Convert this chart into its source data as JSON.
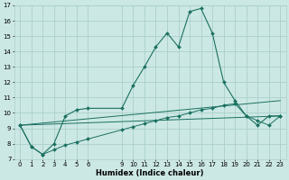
{
  "xlabel": "Humidex (Indice chaleur)",
  "bg_color": "#cce8e4",
  "grid_color": "#aacfcc",
  "line_color": "#1a7060",
  "series1_x": [
    0,
    1,
    2,
    3,
    4,
    5,
    6,
    9,
    10,
    11,
    12,
    13,
    14,
    15,
    16,
    17,
    18,
    19,
    20,
    21,
    22,
    23
  ],
  "series1_y": [
    9.2,
    7.8,
    7.3,
    8.0,
    9.8,
    10.2,
    10.3,
    10.3,
    11.8,
    13.0,
    14.3,
    15.2,
    14.3,
    16.6,
    16.8,
    15.2,
    12.0,
    10.8,
    9.8,
    9.2,
    9.8,
    9.8
  ],
  "series2_x": [
    0,
    1,
    2,
    3,
    4,
    5,
    6,
    9,
    10,
    11,
    12,
    13,
    14,
    15,
    16,
    17,
    18,
    19,
    20,
    21,
    22,
    23
  ],
  "series2_y": [
    9.2,
    7.8,
    7.3,
    7.6,
    7.9,
    8.1,
    8.3,
    8.9,
    9.1,
    9.3,
    9.5,
    9.7,
    9.8,
    10.0,
    10.2,
    10.3,
    10.5,
    10.6,
    9.8,
    9.5,
    9.2,
    9.8
  ],
  "series3_x": [
    0,
    23
  ],
  "series3_y": [
    9.2,
    9.8
  ],
  "series4_x": [
    0,
    23
  ],
  "series4_y": [
    9.2,
    10.8
  ],
  "x_ticks": [
    0,
    1,
    2,
    3,
    4,
    5,
    6,
    9,
    10,
    11,
    12,
    13,
    14,
    15,
    16,
    17,
    18,
    19,
    20,
    21,
    22,
    23
  ],
  "ylim": [
    7,
    17
  ],
  "xlim": [
    -0.5,
    23.5
  ],
  "tick_fontsize": 5.0,
  "xlabel_fontsize": 6.0
}
